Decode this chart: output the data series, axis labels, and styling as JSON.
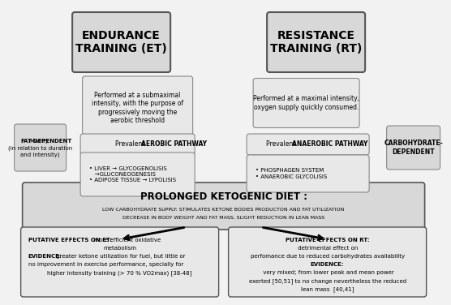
{
  "bg_color": "#f2f2f2",
  "box_gray": "#d8d8d8",
  "box_light": "#e8e8e8",
  "edge_dark": "#555555",
  "edge_light": "#888888",
  "et_title": "ENDURANCE\nTRAINING (ET)",
  "rt_title": "RESISTANCE\nTRAINING (RT)",
  "et_desc": "Performed at a submaximal\nintensity, with the purpose of\nprogressively moving the\naerobic threshold",
  "rt_desc": "Performed at a maximal intensity,\noxygen supply quickly consumed.",
  "left_label_1": "Mainly ",
  "left_label_bold": "FAT-DEPENDENT",
  "left_label_2": "\n(in relation to duration\nand intensity)",
  "right_label": "CARBOHYDRATE-\nDEPENDENT",
  "aerobic_header_normal": "Prevalent ",
  "aerobic_header_bold": "AEROBIC PATHWAY",
  "aerobic_body": " LIVER → GLYCOGENOLISIS\n    →GLUCONEOGENESIS\n ADIPOSE TISSUE → LYPOLISIS",
  "anaerobic_header_normal": "Prevalent ",
  "anaerobic_header_bold": "ANAEROBIC PATHWAY",
  "anaerobic_body": " PHOSPHAGEN SYSTEM\n ANAEROBIC GLYCOLISIS",
  "keto_title": "PROLONGED KETOGENIC DIET :",
  "keto_line1": "LOW CARBOHYDRATE SUPPLY: STIMULATES KETONE BODIES PRODUCTON AND FAT UTILIZATION",
  "keto_line2": "DECREASE IN BODY WEIGHT AND FAT MASS, SLIGHT REDUCTION IN LEAN MASS",
  "et_effects_bold": "PUTATIVE EFFECTS ON ET:",
  "et_effects_rest": " more efficient oxidative metabolism",
  "et_evidence_bold": "EVIDENCE:",
  "et_evidence_rest": " greater ketone utilization for fuel, but little or\nno improvement in exercise performance, specially for\nhigher intensity training (> 70 % VO2max) [38-48]",
  "rt_effects_bold": "PUTATIVE EFFECTS ON RT:",
  "rt_effects_rest": " detrimental effect on\nperfomance due to reduced carbohydrates availability",
  "rt_evidence_bold": "EVIDENCE:",
  "rt_evidence_rest": " very mixed; from lower peak and mean power\nexerted [50,51] to no change nevertheless the reduced\nlean mass  [40,41]"
}
